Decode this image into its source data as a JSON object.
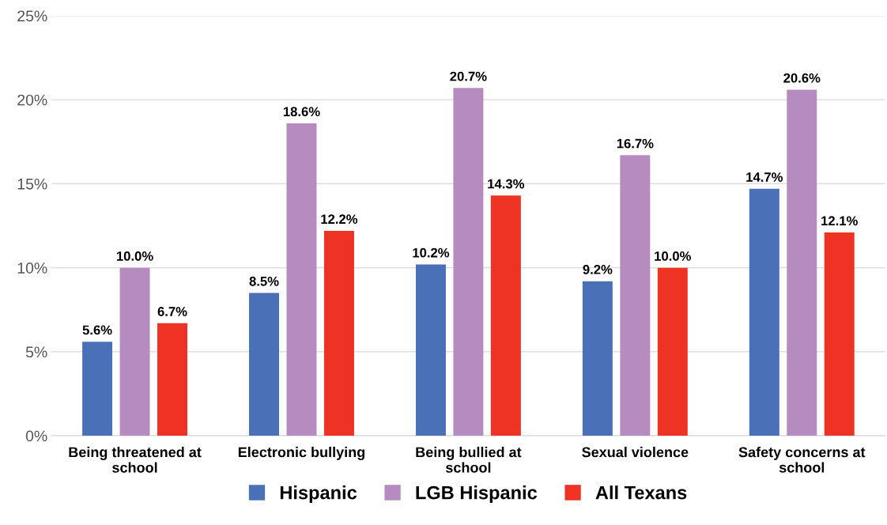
{
  "chart_data": {
    "type": "bar",
    "categories": [
      "Being threatened at school",
      "Electronic bullying",
      "Being bullied at school",
      "Sexual violence",
      "Safety concerns at school"
    ],
    "series": [
      {
        "name": "Hispanic",
        "color": "#4a71b8",
        "values": [
          5.6,
          8.5,
          10.2,
          9.2,
          14.7
        ],
        "value_labels": [
          "5.6%",
          "8.5%",
          "10.2%",
          "9.2%",
          "14.7%"
        ]
      },
      {
        "name": "LGB Hispanic",
        "color": "#b68bc0",
        "values": [
          10.0,
          18.6,
          20.7,
          16.7,
          20.6
        ],
        "value_labels": [
          "10.0%",
          "18.6%",
          "20.7%",
          "16.7%",
          "20.6%"
        ]
      },
      {
        "name": "All Texans",
        "color": "#ee3224",
        "values": [
          6.7,
          12.2,
          14.3,
          10.0,
          12.1
        ],
        "value_labels": [
          "6.7%",
          "12.2%",
          "14.3%",
          "10.0%",
          "12.1%"
        ]
      }
    ],
    "ylim": [
      0,
      25
    ],
    "yticks": [
      {
        "value": 0,
        "label": "0%"
      },
      {
        "value": 5,
        "label": "5%"
      },
      {
        "value": 10,
        "label": "10%"
      },
      {
        "value": 15,
        "label": "15%"
      },
      {
        "value": 20,
        "label": "20%"
      },
      {
        "value": 25,
        "label": "25%"
      }
    ],
    "grid": "y",
    "legend": "bottom"
  }
}
